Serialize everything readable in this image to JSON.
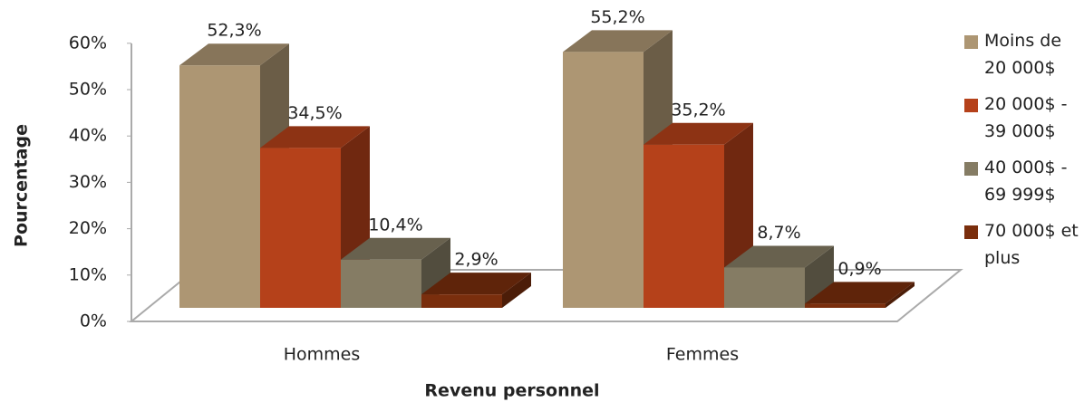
{
  "chart_data": {
    "type": "bar3d",
    "x_label": "Revenu personnel",
    "y_label": "Pourcentage",
    "categories": [
      "Hommes",
      "Femmes"
    ],
    "series": [
      {
        "name": "Moins de 20 000$",
        "color": "#ad9673",
        "values": [
          52.3,
          55.2
        ],
        "value_labels": [
          "52,3%",
          "55,2%"
        ]
      },
      {
        "name": "20 000$ - 39 000$",
        "color": "#b5411a",
        "values": [
          34.5,
          35.2
        ],
        "value_labels": [
          "34,5%",
          "35,2%"
        ]
      },
      {
        "name": "40 000$ - 69 999$",
        "color": "#857c64",
        "values": [
          10.4,
          8.7
        ],
        "value_labels": [
          "10,4%",
          "8,7%"
        ]
      },
      {
        "name": "70 000$ et plus",
        "color": "#7a2e0d",
        "values": [
          2.9,
          0.9
        ],
        "value_labels": [
          "2,9%",
          "0,9%"
        ]
      }
    ],
    "ylim": [
      0,
      60
    ],
    "yticks": [
      {
        "value": 0,
        "label": "0%"
      },
      {
        "value": 10,
        "label": "10%"
      },
      {
        "value": 20,
        "label": "20%"
      },
      {
        "value": 30,
        "label": "30%"
      },
      {
        "value": 40,
        "label": "40%"
      },
      {
        "value": 50,
        "label": "50%"
      },
      {
        "value": 60,
        "label": "60%"
      }
    ],
    "legend": "right"
  }
}
